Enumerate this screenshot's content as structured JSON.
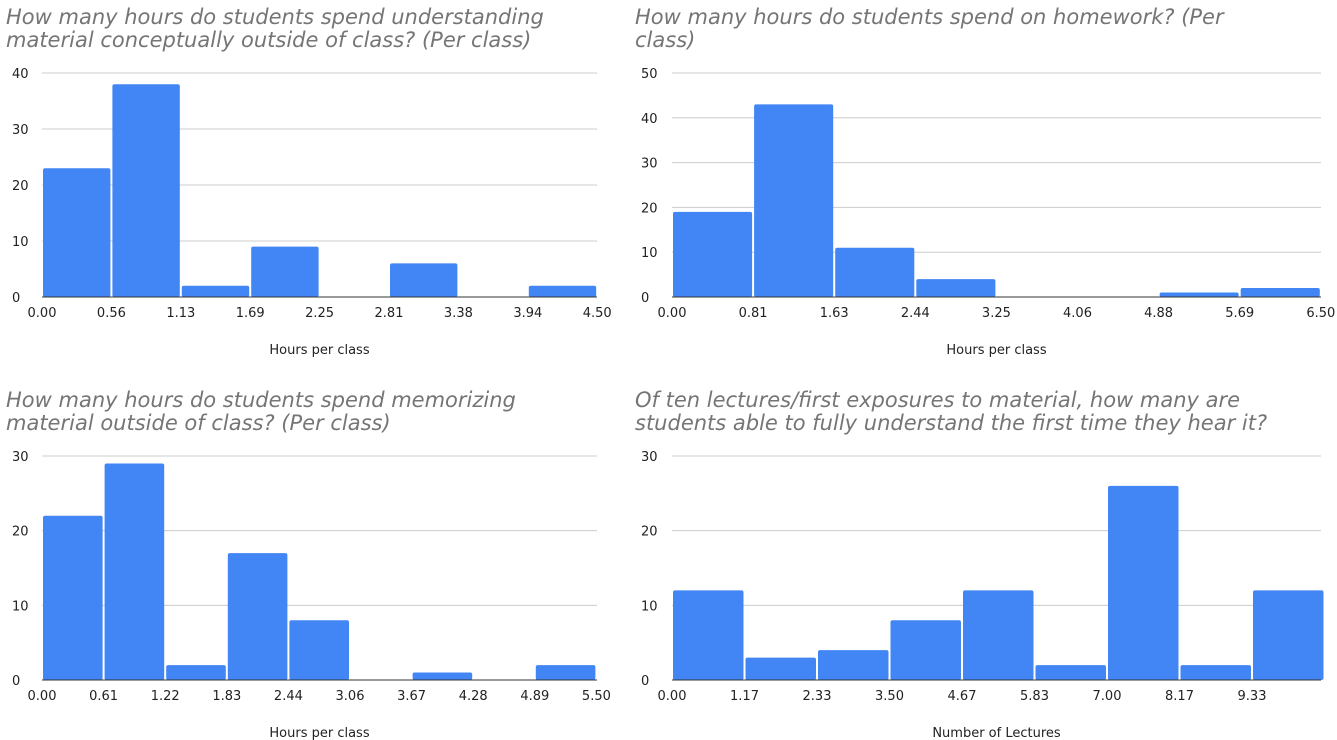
{
  "chart_data": [
    {
      "type": "bar",
      "title": "How many hours do students spend understanding\nmaterial conceptually outside of class? (Per class)",
      "xlabel": "Hours per class",
      "ylabel": "",
      "x_ticks": [
        "0.00",
        "0.56",
        "1.13",
        "1.69",
        "2.25",
        "2.81",
        "3.38",
        "3.94",
        "4.50"
      ],
      "y_ticks": [
        "0",
        "10",
        "20",
        "30",
        "40"
      ],
      "ylim": [
        0,
        40
      ],
      "categories": [
        "0.00–0.56",
        "0.56–1.13",
        "1.13–1.69",
        "1.69–2.25",
        "2.25–2.81",
        "2.81–3.38",
        "3.38–3.94",
        "3.94–4.50"
      ],
      "values": [
        23,
        38,
        2,
        9,
        0,
        6,
        0,
        2
      ],
      "bar_color": "#4285f4",
      "grid": true,
      "legend": "none"
    },
    {
      "type": "bar",
      "title": "How many hours do students spend on homework? (Per\nclass)",
      "xlabel": "Hours per class",
      "ylabel": "",
      "x_ticks": [
        "0.00",
        "0.81",
        "1.63",
        "2.44",
        "3.25",
        "4.06",
        "4.88",
        "5.69",
        "6.50"
      ],
      "y_ticks": [
        "0",
        "10",
        "20",
        "30",
        "40",
        "50"
      ],
      "ylim": [
        0,
        50
      ],
      "categories": [
        "0.00–0.81",
        "0.81–1.63",
        "1.63–2.44",
        "2.44–3.25",
        "3.25–4.06",
        "4.06–4.88",
        "4.88–5.69",
        "5.69–6.50"
      ],
      "values": [
        19,
        43,
        11,
        4,
        0,
        0,
        1,
        2
      ],
      "bar_color": "#4285f4",
      "grid": true,
      "legend": "none"
    },
    {
      "type": "bar",
      "title": "How many hours do students spend memorizing\nmaterial outside of class? (Per class)",
      "xlabel": "Hours per class",
      "ylabel": "",
      "x_ticks": [
        "0.00",
        "0.61",
        "1.22",
        "1.83",
        "2.44",
        "3.06",
        "3.67",
        "4.28",
        "4.89",
        "5.50"
      ],
      "y_ticks": [
        "0",
        "10",
        "20",
        "30"
      ],
      "ylim": [
        0,
        30
      ],
      "categories": [
        "0.00–0.61",
        "0.61–1.22",
        "1.22–1.83",
        "1.83–2.44",
        "2.44–3.06",
        "3.06–3.67",
        "3.67–4.28",
        "4.28–4.89",
        "4.89–5.50"
      ],
      "values": [
        22,
        29,
        2,
        17,
        8,
        0,
        1,
        0,
        2
      ],
      "bar_color": "#4285f4",
      "grid": true,
      "legend": "none"
    },
    {
      "type": "bar",
      "title": "Of ten lectures/first exposures to material, how many are\nstudents able to fully understand the first time they hear it?",
      "xlabel": "Number of Lectures",
      "ylabel": "",
      "x_ticks": [
        "0.00",
        "1.17",
        "2.33",
        "3.50",
        "4.67",
        "5.83",
        "7.00",
        "8.17",
        "9.33"
      ],
      "y_ticks": [
        "0",
        "10",
        "20",
        "30"
      ],
      "ylim": [
        0,
        30
      ],
      "categories": [
        "0.00–1.17",
        "1.17–2.33",
        "2.33–3.50",
        "3.50–4.67",
        "4.67–5.83",
        "5.83–7.00",
        "7.00–8.17",
        "8.17–9.33",
        "9.33–10.50"
      ],
      "values": [
        12,
        3,
        4,
        8,
        12,
        2,
        26,
        2,
        12
      ],
      "bar_color": "#4285f4",
      "grid": true,
      "legend": "none"
    }
  ]
}
